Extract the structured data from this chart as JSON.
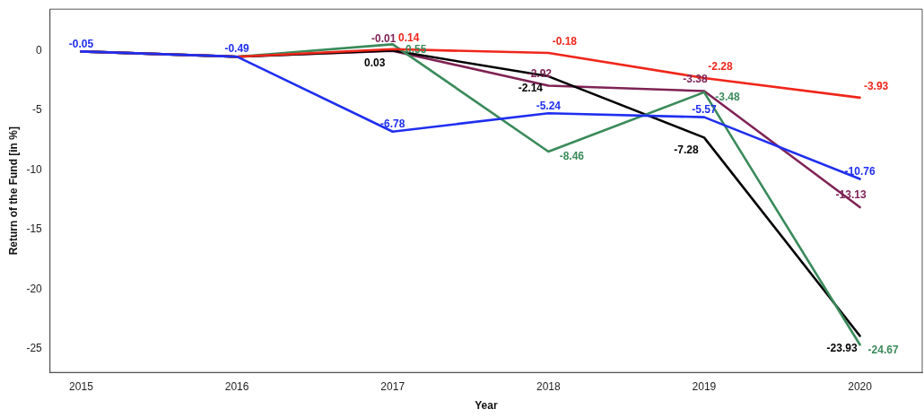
{
  "chart_data": {
    "type": "line",
    "xlabel": "Year",
    "ylabel": "Return of the Fund [in %]",
    "x": [
      2015,
      2016,
      2017,
      2018,
      2019,
      2020
    ],
    "xlim": [
      2014.8,
      2020.4
    ],
    "xticks": [
      2015,
      2016,
      2017,
      2018,
      2019,
      2020
    ],
    "ylim": [
      -27,
      3.5
    ],
    "yticks": [
      -25,
      -20,
      -15,
      -10,
      -5,
      0
    ],
    "grid": false,
    "legend": false,
    "marker": "none",
    "line_style": "solid",
    "series": [
      {
        "color": "#1f2ff0",
        "values": [
          -0.05,
          -0.49,
          -6.78,
          -5.24,
          -5.57,
          -10.76
        ],
        "value_labels": [
          "-0.05",
          "-0.49",
          "-6.78",
          "-5.24",
          "-5.57",
          "-10.76"
        ]
      },
      {
        "color": "#f0261a",
        "values": [
          -0.05,
          -0.49,
          0.14,
          -0.18,
          -2.28,
          -3.93
        ],
        "value_labels": [
          null,
          null,
          "0.14",
          "-0.18",
          "-2.28",
          "-3.93"
        ]
      },
      {
        "color": "#3a8a5a",
        "values": [
          -0.05,
          -0.49,
          0.55,
          -8.46,
          -3.48,
          -24.67
        ],
        "value_labels": [
          null,
          null,
          "0.55",
          "-8.46",
          "-3.48",
          "-24.67"
        ]
      },
      {
        "color": "#000000",
        "values": [
          -0.05,
          -0.49,
          0.03,
          -2.14,
          -7.28,
          -23.93
        ],
        "value_labels": [
          null,
          null,
          "0.03",
          "-2.14",
          "-7.28",
          "-23.93"
        ]
      },
      {
        "color": "#7f2355",
        "values": [
          -0.05,
          -0.49,
          -0.01,
          -2.92,
          -3.38,
          -13.13
        ],
        "value_labels": [
          null,
          null,
          "-0.01",
          "-2.92",
          "-3.38",
          "-13.13"
        ]
      }
    ]
  }
}
